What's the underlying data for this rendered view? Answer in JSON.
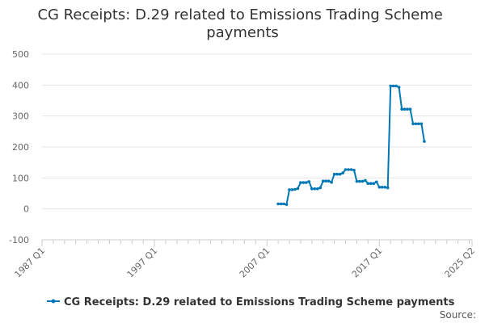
{
  "chart_data": {
    "type": "line",
    "title": "CG Receipts: D.29 related to Emissions Trading Scheme payments",
    "xlabel": "",
    "ylabel": "",
    "x_range": [
      "1987 Q1",
      "2025 Q2"
    ],
    "x_ticks": [
      "1987 Q1",
      "1997 Q1",
      "2007 Q1",
      "2017 Q1",
      "2025 Q2"
    ],
    "ylim": [
      -100,
      500
    ],
    "y_ticks": [
      -100,
      0,
      100,
      200,
      300,
      400,
      500
    ],
    "grid": true,
    "legend_position": "bottom",
    "colors": {
      "series": "#0077b6",
      "grid": "#e6e6e6",
      "axis": "#cccccc"
    },
    "series": [
      {
        "name": "CG Receipts: D.29 related to Emissions Trading Scheme payments",
        "points": [
          [
            "2008 Q1",
            16
          ],
          [
            "2008 Q2",
            16
          ],
          [
            "2008 Q3",
            16
          ],
          [
            "2008 Q4",
            14
          ],
          [
            "2009 Q1",
            62
          ],
          [
            "2009 Q2",
            62
          ],
          [
            "2009 Q3",
            63
          ],
          [
            "2009 Q4",
            66
          ],
          [
            "2010 Q1",
            85
          ],
          [
            "2010 Q2",
            85
          ],
          [
            "2010 Q3",
            85
          ],
          [
            "2010 Q4",
            88
          ],
          [
            "2011 Q1",
            65
          ],
          [
            "2011 Q2",
            65
          ],
          [
            "2011 Q3",
            65
          ],
          [
            "2011 Q4",
            68
          ],
          [
            "2012 Q1",
            90
          ],
          [
            "2012 Q2",
            90
          ],
          [
            "2012 Q3",
            90
          ],
          [
            "2012 Q4",
            86
          ],
          [
            "2013 Q1",
            112
          ],
          [
            "2013 Q2",
            112
          ],
          [
            "2013 Q3",
            112
          ],
          [
            "2013 Q4",
            116
          ],
          [
            "2014 Q1",
            127
          ],
          [
            "2014 Q2",
            127
          ],
          [
            "2014 Q3",
            127
          ],
          [
            "2014 Q4",
            125
          ],
          [
            "2015 Q1",
            89
          ],
          [
            "2015 Q2",
            89
          ],
          [
            "2015 Q3",
            89
          ],
          [
            "2015 Q4",
            92
          ],
          [
            "2016 Q1",
            82
          ],
          [
            "2016 Q2",
            82
          ],
          [
            "2016 Q3",
            82
          ],
          [
            "2016 Q4",
            87
          ],
          [
            "2017 Q1",
            70
          ],
          [
            "2017 Q2",
            70
          ],
          [
            "2017 Q3",
            70
          ],
          [
            "2017 Q4",
            68
          ],
          [
            "2018 Q1",
            397
          ],
          [
            "2018 Q2",
            397
          ],
          [
            "2018 Q3",
            397
          ],
          [
            "2018 Q4",
            393
          ],
          [
            "2019 Q1",
            322
          ],
          [
            "2019 Q2",
            322
          ],
          [
            "2019 Q3",
            322
          ],
          [
            "2019 Q4",
            322
          ],
          [
            "2020 Q1",
            275
          ],
          [
            "2020 Q2",
            275
          ],
          [
            "2020 Q3",
            275
          ],
          [
            "2020 Q4",
            275
          ],
          [
            "2021 Q1",
            218
          ]
        ]
      }
    ]
  },
  "source_label": "Source:"
}
